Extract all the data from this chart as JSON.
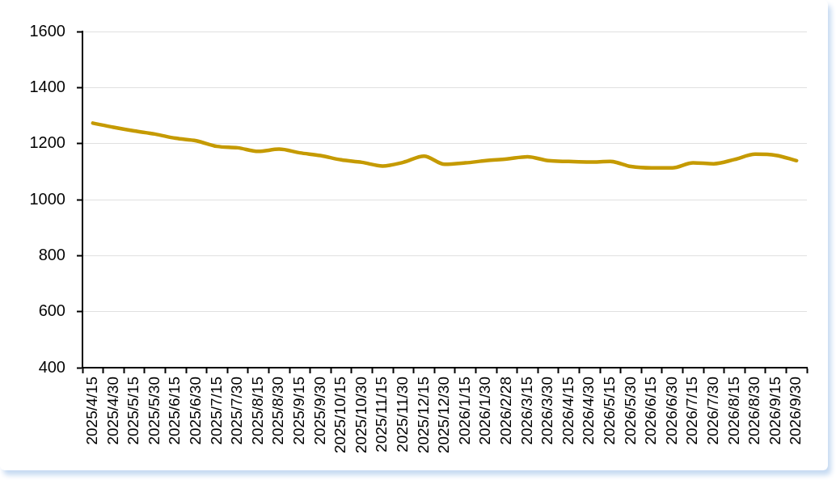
{
  "chart_data": {
    "type": "line",
    "categories": [
      "2025/4/15",
      "2025/4/30",
      "2025/5/15",
      "2025/5/30",
      "2025/6/15",
      "2025/6/30",
      "2025/7/15",
      "2025/7/30",
      "2025/8/15",
      "2025/8/30",
      "2025/9/15",
      "2025/9/30",
      "2025/10/15",
      "2025/10/30",
      "2025/11/15",
      "2025/11/30",
      "2025/12/15",
      "2025/12/30",
      "2026/1/15",
      "2026/1/30",
      "2026/2/28",
      "2026/3/15",
      "2026/3/30",
      "2026/4/15",
      "2026/4/30",
      "2026/5/15",
      "2026/5/30",
      "2026/6/15",
      "2026/6/30",
      "2026/7/15",
      "2026/7/30",
      "2026/8/15",
      "2026/8/30",
      "2026/9/15",
      "2026/9/30"
    ],
    "series": [
      {
        "color": "#c59a00",
        "values": [
          1273,
          1258,
          1245,
          1234,
          1219,
          1210,
          1190,
          1185,
          1172,
          1180,
          1167,
          1157,
          1142,
          1133,
          1120,
          1133,
          1155,
          1126,
          1131,
          1139,
          1145,
          1153,
          1139,
          1136,
          1134,
          1136,
          1118,
          1113,
          1113,
          1131,
          1128,
          1143,
          1162,
          1158,
          1139
        ]
      }
    ],
    "ylim": [
      400,
      1600
    ],
    "yticks": [
      400,
      600,
      800,
      1000,
      1200,
      1400,
      1600
    ],
    "grid": "y",
    "marker": "none"
  }
}
